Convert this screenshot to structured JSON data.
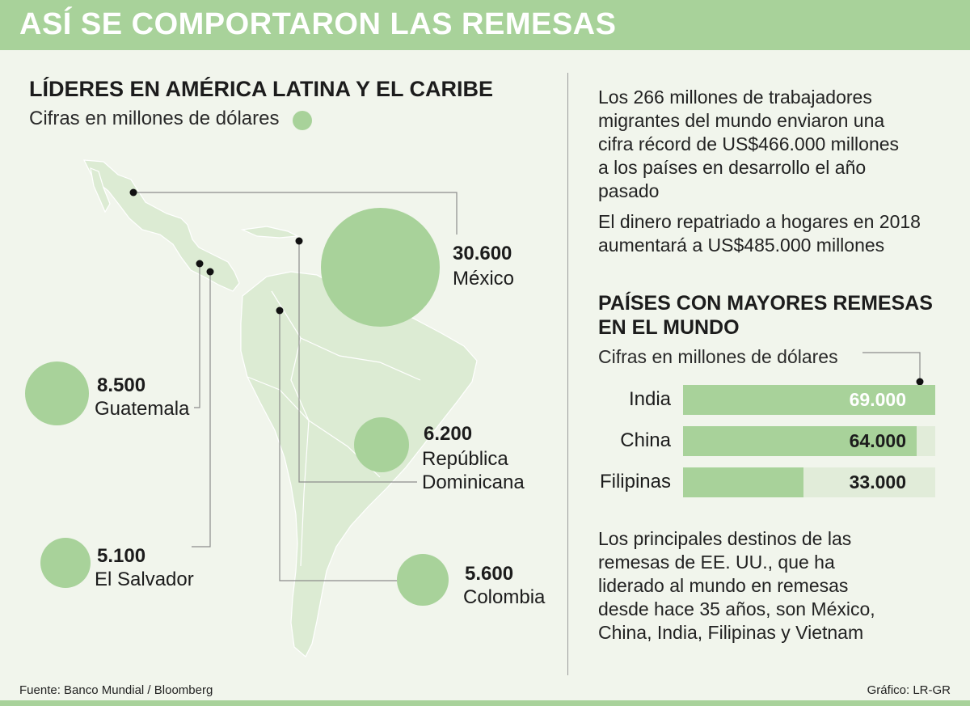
{
  "title": "ASÍ SE COMPORTARON LAS REMESAS",
  "left": {
    "heading": "LÍDERES EN AMÉRICA LATINA Y EL CARIBE",
    "subheading": "Cifras en millones de dólares"
  },
  "right": {
    "paragraph1": "Los 266 millones de trabajadores migrantes del mundo enviaron una cifra récord de US$466.000 millones a los países en desarrollo el año pasado",
    "paragraph2": "El dinero repatriado a hogares en 2018 aumentará a US$485.000 millones",
    "heading": "PAÍSES CON MAYORES REMESAS EN EL MUNDO",
    "subheading": "Cifras en millones de dólares",
    "paragraph3": "Los principales destinos de las remesas de EE. UU., que ha liderado al mundo en remesas desde hace 35 años, son México, China, India, Filipinas y Vietnam"
  },
  "footer": {
    "source": "Fuente: Banco Mundial / Bloomberg",
    "credit": "Gráfico: LR-GR"
  },
  "colors": {
    "accent_green": "#a8d29a",
    "bar_track": "#e1ecd9",
    "background": "#f1f5ec",
    "map_land": "#dcebd3"
  },
  "chart_data": [
    {
      "type": "bubble",
      "title": "LÍDERES EN AMÉRICA LATINA Y EL CARIBE",
      "unit": "Cifras en millones de dólares",
      "categories": [
        "México",
        "Guatemala",
        "República Dominicana",
        "El Salvador",
        "Colombia"
      ],
      "value_labels": [
        "30.600",
        "8.500",
        "6.200",
        "5.100",
        "5.600"
      ],
      "values": [
        30600,
        8500,
        6200,
        5100,
        5600
      ]
    },
    {
      "type": "bar",
      "orientation": "horizontal",
      "title": "PAÍSES CON MAYORES REMESAS EN EL MUNDO",
      "unit": "Cifras en millones de dólares",
      "categories": [
        "India",
        "China",
        "Filipinas"
      ],
      "value_labels": [
        "69.000",
        "64.000",
        "33.000"
      ],
      "values": [
        69000,
        64000,
        33000
      ],
      "xlim": [
        0,
        69000
      ]
    }
  ]
}
